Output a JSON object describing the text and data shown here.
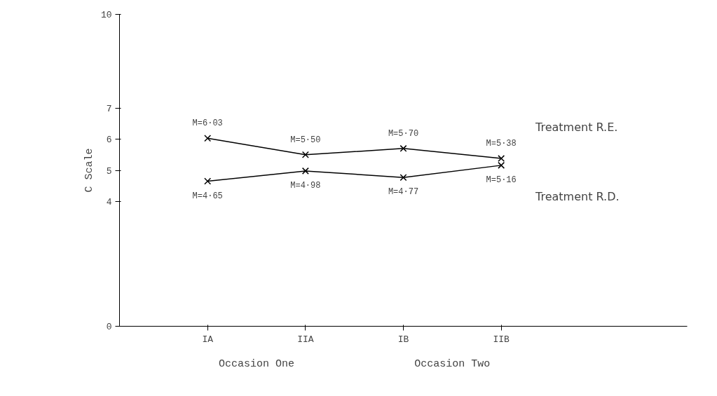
{
  "chart_data": {
    "type": "line",
    "ylabel": "C Scale",
    "categories": [
      "IA",
      "IIA",
      "IB",
      "IIB"
    ],
    "series": [
      {
        "name": "Treatment R.E.",
        "color": "#000000",
        "values": [
          6.03,
          5.5,
          5.7,
          5.38
        ],
        "value_labels": [
          "M=6·03",
          "M=5·50",
          "M=5·70",
          "M=5·38"
        ]
      },
      {
        "name": "Treatment R.D.",
        "color": "#000000",
        "values": [
          4.65,
          4.98,
          4.77,
          5.16
        ],
        "value_labels": [
          "M=4·65",
          "M=4·98",
          "M=4·77",
          "M=5·16"
        ]
      }
    ],
    "ylim": [
      0,
      10
    ],
    "yticks": [
      0,
      4,
      5,
      6,
      7,
      10
    ],
    "marker": "cross",
    "line_style": "solid",
    "grid": false,
    "legend": false,
    "annotations": [
      "Occasion One",
      "Occasion Two"
    ]
  }
}
